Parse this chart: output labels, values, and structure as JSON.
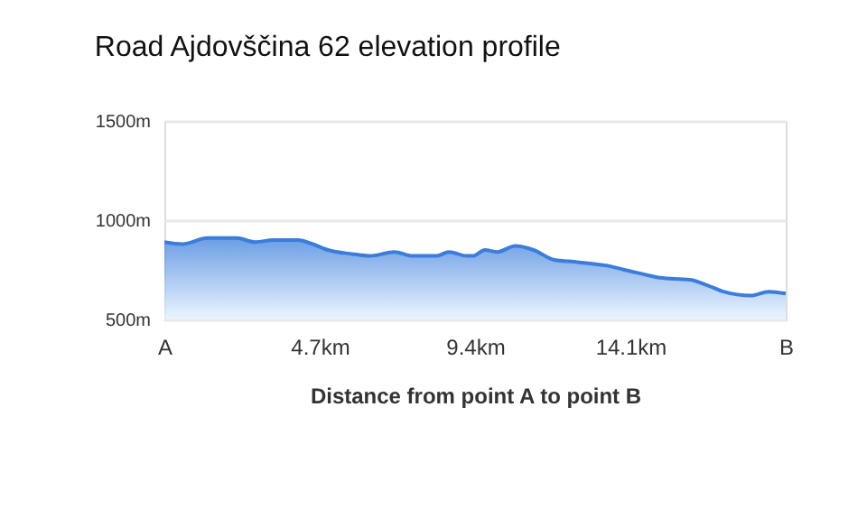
{
  "chart_data": {
    "type": "area",
    "title": "Road Ajdovščina 62 elevation profile",
    "xlabel": "Distance from point A to point B",
    "x": [
      0.0,
      0.55,
      1.3,
      2.19,
      2.74,
      3.29,
      4.04,
      4.49,
      4.95,
      5.68,
      6.23,
      6.96,
      7.51,
      8.24,
      8.61,
      9.15,
      9.33,
      9.7,
      10.07,
      10.62,
      11.17,
      11.8,
      12.44,
      12.99,
      13.44,
      13.91,
      14.45,
      15.0,
      15.91,
      16.46,
      16.92,
      17.74,
      18.29,
      18.8
    ],
    "series": [
      {
        "color": "#3a7ddc",
        "values": [
          890,
          880,
          910,
          910,
          890,
          900,
          900,
          880,
          850,
          830,
          820,
          840,
          820,
          820,
          840,
          820,
          820,
          850,
          840,
          870,
          850,
          800,
          790,
          780,
          770,
          750,
          730,
          710,
          700,
          670,
          640,
          620,
          640,
          630
        ]
      }
    ],
    "xlim": [
      0,
      18.8
    ],
    "xticks": [
      {
        "value": 0,
        "label": "A"
      },
      {
        "value": 4.7,
        "label": "4.7km"
      },
      {
        "value": 9.4,
        "label": "9.4km"
      },
      {
        "value": 14.1,
        "label": "14.1km"
      },
      {
        "value": 18.8,
        "label": "B"
      }
    ],
    "ylim": [
      500,
      1500
    ],
    "yticks": [
      {
        "value": 500,
        "label": "500m"
      },
      {
        "value": 1000,
        "label": "1000m"
      },
      {
        "value": 1500,
        "label": "1500m"
      }
    ],
    "grid": "y",
    "marker": "none",
    "line_style": "solid"
  }
}
